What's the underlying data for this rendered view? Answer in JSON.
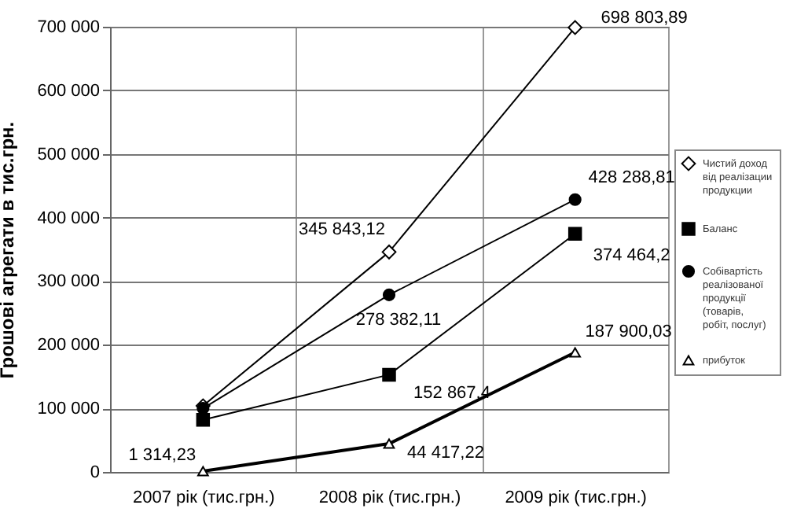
{
  "chart_data": {
    "type": "line",
    "ylabel": "Грошові агрегати в тис.грн.",
    "categories": [
      "2007 рік (тис.грн.)",
      "2008 рік (тис.грн.)",
      "2009 рік (тис.грн.)"
    ],
    "series": [
      {
        "name": "Чистий доход від реалізации продукции",
        "color": "#000000",
        "marker": "diamond",
        "values": [
          104000,
          345843.12,
          698803.89
        ],
        "value_labels": [
          null,
          "345 843,12",
          "698 803,89"
        ]
      },
      {
        "name": "Баланс",
        "color": "#000000",
        "marker": "square",
        "values": [
          82000,
          152867.4,
          374464.2
        ],
        "value_labels": [
          null,
          "152 867,4",
          "374 464,2"
        ]
      },
      {
        "name": "Собівартість реалізованої продукції (товарів, робіт, послуг)",
        "color": "#000000",
        "marker": "circle",
        "values": [
          100000,
          278382.11,
          428288.81
        ],
        "value_labels": [
          null,
          "278 382,11",
          "428 288,81"
        ]
      },
      {
        "name": "прибуток",
        "color": "#000000",
        "marker": "triangle",
        "values": [
          1314.23,
          44417.22,
          187900.03
        ],
        "value_labels": [
          "1 314,23",
          "44 417,22",
          "187 900,03"
        ]
      }
    ],
    "ylim": [
      0,
      700000
    ],
    "yticks": [
      {
        "value": 0,
        "label": "0"
      },
      {
        "value": 100000,
        "label": "100 000"
      },
      {
        "value": 200000,
        "label": "200 000"
      },
      {
        "value": 300000,
        "label": "300 000"
      },
      {
        "value": 400000,
        "label": "400 000"
      },
      {
        "value": 500000,
        "label": "500 000"
      },
      {
        "value": 600000,
        "label": "600 000"
      },
      {
        "value": 700000,
        "label": "700 000"
      }
    ],
    "grid": true,
    "legend": "right"
  }
}
